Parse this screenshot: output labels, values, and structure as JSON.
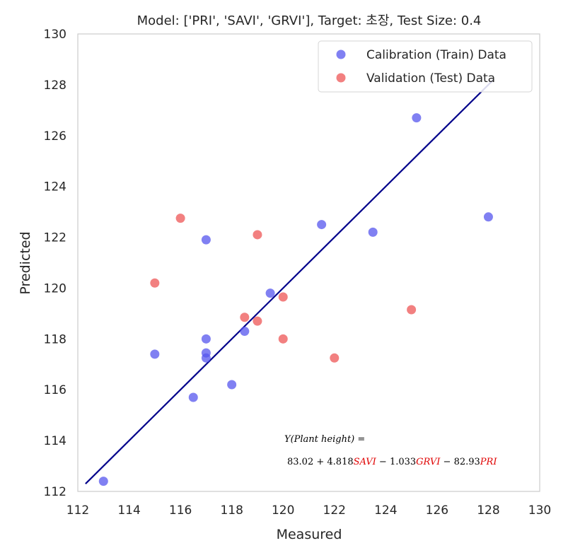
{
  "chart_data": {
    "type": "scatter",
    "title": "Model: ['PRI', 'SAVI', 'GRVI'], Target: 초장, Test Size: 0.4",
    "xlabel": "Measured",
    "ylabel": "Predicted",
    "xlim": [
      112,
      130
    ],
    "ylim": [
      112,
      130
    ],
    "xticks": [
      112,
      114,
      116,
      118,
      120,
      122,
      124,
      126,
      128,
      130
    ],
    "yticks": [
      112,
      114,
      116,
      118,
      120,
      122,
      124,
      126,
      128,
      130
    ],
    "grid": false,
    "legend_position": "top-right",
    "series": [
      {
        "name": "Calibration (Train) Data",
        "color": "#5555ee",
        "points": [
          [
            113.0,
            112.4
          ],
          [
            115.0,
            117.4
          ],
          [
            116.5,
            115.7
          ],
          [
            117.0,
            121.9
          ],
          [
            117.0,
            118.0
          ],
          [
            117.0,
            117.45
          ],
          [
            117.0,
            117.25
          ],
          [
            118.0,
            116.2
          ],
          [
            118.5,
            118.3
          ],
          [
            119.5,
            119.8
          ],
          [
            121.5,
            122.5
          ],
          [
            123.5,
            122.2
          ],
          [
            125.2,
            126.7
          ],
          [
            128.0,
            122.8
          ]
        ]
      },
      {
        "name": "Validation (Test) Data",
        "color": "#ee5555",
        "points": [
          [
            115.0,
            120.2
          ],
          [
            116.0,
            122.75
          ],
          [
            118.5,
            118.85
          ],
          [
            119.0,
            122.1
          ],
          [
            119.0,
            118.7
          ],
          [
            120.0,
            119.65
          ],
          [
            120.0,
            118.0
          ],
          [
            122.0,
            117.25
          ],
          [
            125.0,
            119.15
          ]
        ]
      }
    ],
    "fit_line": {
      "color": "#00008b",
      "x": [
        112.3,
        128.2
      ],
      "y": [
        112.3,
        128.2
      ]
    },
    "equation": {
      "line1": "Y(Plant height) =",
      "intercept": "83.02",
      "coef_savi": "4.818",
      "var_savi": "SAVI",
      "coef_grvi": "1.033",
      "var_grvi": "GRVI",
      "coef_pri": "82.93",
      "var_pri": "PRI",
      "var_color": "#e00000"
    }
  }
}
